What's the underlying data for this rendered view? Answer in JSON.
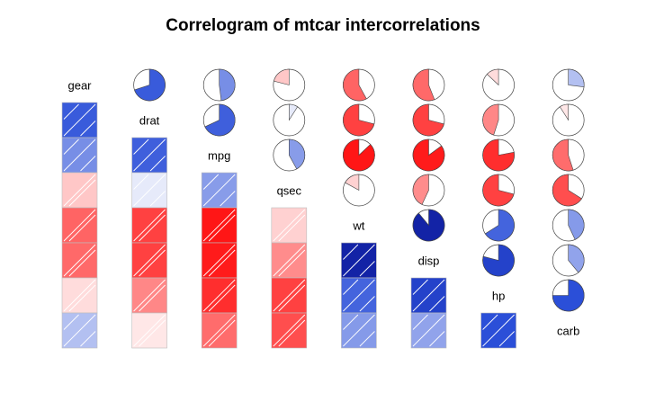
{
  "chart_data": {
    "type": "correlogram",
    "title": "Correlogram of mtcar intercorrelations",
    "variables": [
      "gear",
      "drat",
      "mpg",
      "qsec",
      "wt",
      "disp",
      "hp",
      "carb"
    ],
    "lower_panel": "shade",
    "upper_panel": "pie",
    "order": "PCA",
    "correlations": [
      [
        1.0,
        0.7,
        0.48,
        -0.21,
        -0.58,
        -0.56,
        -0.13,
        0.27
      ],
      [
        0.7,
        1.0,
        0.68,
        0.09,
        -0.71,
        -0.71,
        -0.45,
        -0.09
      ],
      [
        0.48,
        0.68,
        1.0,
        0.42,
        -0.87,
        -0.85,
        -0.78,
        -0.55
      ],
      [
        -0.21,
        0.09,
        0.42,
        1.0,
        -0.17,
        -0.43,
        -0.71,
        -0.66
      ],
      [
        -0.58,
        -0.71,
        -0.87,
        -0.17,
        1.0,
        0.89,
        0.66,
        0.43
      ],
      [
        -0.56,
        -0.71,
        -0.85,
        -0.43,
        0.89,
        1.0,
        0.79,
        0.39
      ],
      [
        -0.13,
        -0.45,
        -0.78,
        -0.71,
        0.66,
        0.79,
        1.0,
        0.75
      ],
      [
        0.27,
        -0.09,
        -0.55,
        -0.66,
        0.43,
        0.39,
        0.75,
        1.0
      ]
    ],
    "color_scale": {
      "negative_strong": "#ff0000",
      "neutral": "#ffffff",
      "positive_strong": "#00007f",
      "positive_mid": "#2b4fd8",
      "pie_outline": "#444444",
      "cell_border": "#bdbdbd"
    }
  }
}
